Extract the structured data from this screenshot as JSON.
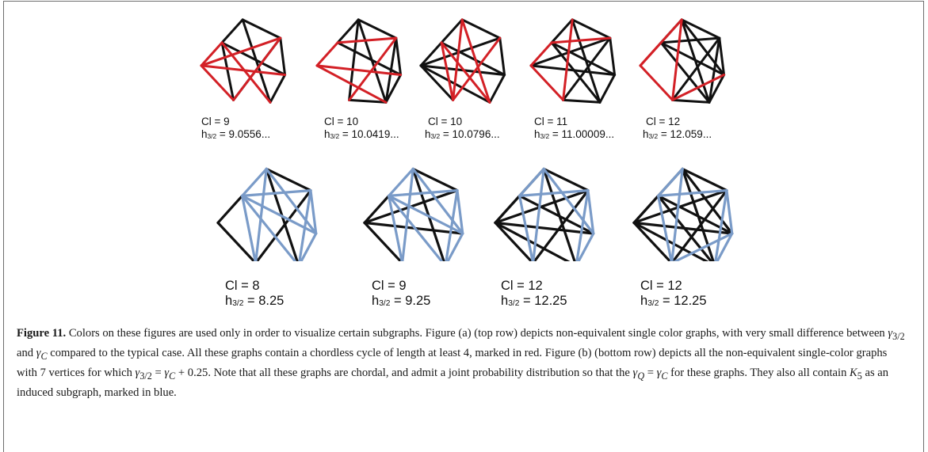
{
  "figure": {
    "colors": {
      "black": "#111111",
      "red": "#d32026",
      "blue": "#7a9bc8"
    },
    "top_row": [
      {
        "cl": "Cl = 9",
        "h_prefix": "h",
        "h_sub": "3/2",
        "h_value": " = 9.0556..."
      },
      {
        "cl": "Cl = 10",
        "h_prefix": "h",
        "h_sub": "3/2",
        "h_value": " = 10.0419..."
      },
      {
        "cl": "Cl = 10",
        "h_prefix": "h",
        "h_sub": "3/2",
        "h_value": " = 10.0796..."
      },
      {
        "cl": "Cl = 11",
        "h_prefix": "h",
        "h_sub": "3/2",
        "h_value": " = 11.00009..."
      },
      {
        "cl": "Cl = 12",
        "h_prefix": "h",
        "h_sub": "3/2",
        "h_value": " = 12.059..."
      }
    ],
    "bottom_row": [
      {
        "cl": "Cl = 8",
        "h_prefix": "h",
        "h_sub": "3/2",
        "h_value": " = 8.25"
      },
      {
        "cl": "Cl = 9",
        "h_prefix": "h",
        "h_sub": "3/2",
        "h_value": " = 9.25"
      },
      {
        "cl": "Cl = 12",
        "h_prefix": "h",
        "h_sub": "3/2",
        "h_value": " = 12.25"
      },
      {
        "cl": "Cl = 12",
        "h_prefix": "h",
        "h_sub": "3/2",
        "h_value": " = 12.25"
      }
    ]
  },
  "caption": {
    "label": "Figure 11.",
    "s1": " Colors on these figures are used only in order to visualize certain subgraphs. Figure (a) (top row) depicts non-equivalent single color graphs, with very small difference between ",
    "g32": "γ",
    "g32_sub": "3/2",
    "s2": " and ",
    "gC": "γ",
    "gC_sub": "C",
    "s3": " compared to the typical case. All these graphs contain a chordless cycle of length at least 4, marked in red. Figure (b) (bottom row) depicts all the non-equivalent single-color graphs with 7 vertices for which ",
    "eq1": "γ",
    "eq1_sub": "3/2",
    "eq1_mid": " = ",
    "eq1_g": "γ",
    "eq1_sub2": "C",
    "eq1_tail": " + 0.25",
    "s4": ". Note that all these graphs are chordal, and admit a joint probability distribution so that the ",
    "eq2_g": "γ",
    "eq2_sub": "Q",
    "eq2_mid": " = ",
    "eq2_g2": "γ",
    "eq2_sub2": "C",
    "s5": " for these graphs. They also all contain ",
    "K": "K",
    "K_sub": "5",
    "s6": " as an induced subgraph, marked in blue."
  }
}
